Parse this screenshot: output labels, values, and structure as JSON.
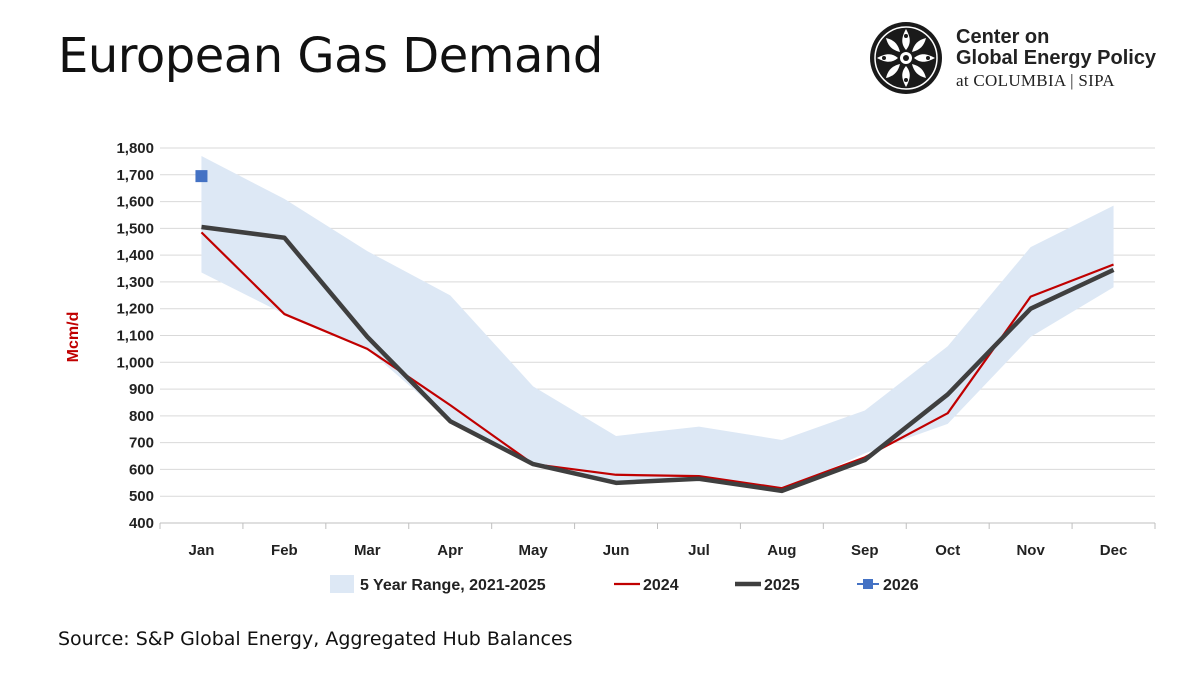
{
  "header": {
    "title": "European Gas Demand",
    "logo_line1": "Center on",
    "logo_line2": "Global Energy Policy",
    "logo_line3": "at COLUMBIA | SIPA"
  },
  "footer": {
    "source": "Source: S&P Global Energy, Aggregated Hub Balances"
  },
  "chart_data": {
    "type": "line",
    "title": "European Gas Demand",
    "xlabel": "",
    "ylabel": "Mcm/d",
    "ylim": [
      400,
      1800
    ],
    "yticks": [
      400,
      500,
      600,
      700,
      800,
      900,
      1000,
      1100,
      1200,
      1300,
      1400,
      1500,
      1600,
      1700,
      1800
    ],
    "ytick_labels": [
      "400",
      "500",
      "600",
      "700",
      "800",
      "900",
      "1,000",
      "1,100",
      "1,200",
      "1,300",
      "1,400",
      "1,500",
      "1,600",
      "1,700",
      "1,800"
    ],
    "categories": [
      "Jan",
      "Feb",
      "Mar",
      "Apr",
      "May",
      "Jun",
      "Jul",
      "Aug",
      "Sep",
      "Oct",
      "Nov",
      "Dec"
    ],
    "range": {
      "name": "5 Year Range, 2021-2025",
      "color": "#dde8f5",
      "low": [
        1335,
        1180,
        1050,
        780,
        615,
        555,
        565,
        520,
        660,
        770,
        1095,
        1280
      ],
      "high": [
        1770,
        1610,
        1415,
        1250,
        910,
        725,
        760,
        710,
        820,
        1060,
        1430,
        1585
      ]
    },
    "series": [
      {
        "name": "2024",
        "color": "#c00000",
        "values": [
          1485,
          1180,
          1050,
          840,
          620,
          580,
          575,
          530,
          645,
          810,
          1245,
          1365
        ]
      },
      {
        "name": "2025",
        "color": "#3f3f3f",
        "values": [
          1505,
          1465,
          1095,
          780,
          620,
          550,
          565,
          520,
          635,
          880,
          1200,
          1345
        ]
      },
      {
        "name": "2026",
        "color": "#4472c4",
        "values": [
          1695,
          null,
          null,
          null,
          null,
          null,
          null,
          null,
          null,
          null,
          null,
          null
        ]
      }
    ],
    "grid": true,
    "legend_position": "bottom"
  }
}
